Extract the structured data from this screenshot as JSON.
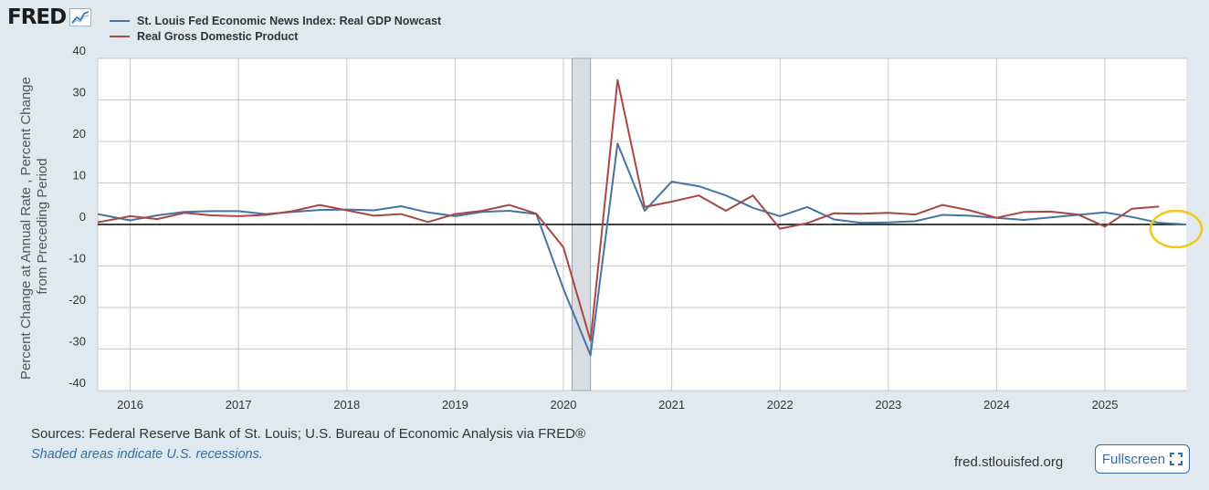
{
  "brand": {
    "logo_text": "FRED",
    "logo_icon": "line-chart-icon"
  },
  "colors": {
    "nowcast": "#4572a7",
    "gdp": "#aa4643",
    "highlight": "#f2c811",
    "accent": "#2e6eb0"
  },
  "footer": {
    "sources": "Sources: Federal Reserve Bank of St. Louis; U.S. Bureau of Economic Analysis via FRED®",
    "note": "Shaded areas indicate U.S. recessions.",
    "url": "fred.stlouisfed.org",
    "fullscreen_label": "Fullscreen",
    "fullscreen_icon": "expand-icon"
  },
  "chart_data": {
    "type": "line",
    "ylabel_line1": "Percent Change at Annual Rate , Percent Change",
    "ylabel_line2": "from Preceding Period",
    "ylim": [
      -40,
      40
    ],
    "yticks": [
      40,
      30,
      20,
      10,
      0,
      -10,
      -20,
      -30,
      -40
    ],
    "xlim": [
      2015.7,
      2025.75
    ],
    "xticks": [
      2016,
      2017,
      2018,
      2019,
      2020,
      2021,
      2022,
      2023,
      2024,
      2025
    ],
    "grid": true,
    "recession": [
      2020.08,
      2020.25
    ],
    "highlight": "circle at right end of the nowcast line",
    "series": [
      {
        "name": "St. Louis Fed Economic News Index: Real GDP Nowcast",
        "color": "#4572a7",
        "x": [
          2015.7,
          2016.0,
          2016.25,
          2016.5,
          2016.75,
          2017.0,
          2017.25,
          2017.5,
          2017.75,
          2018.0,
          2018.25,
          2018.5,
          2018.75,
          2019.0,
          2019.25,
          2019.5,
          2019.75,
          2020.0,
          2020.25,
          2020.5,
          2020.75,
          2021.0,
          2021.25,
          2021.5,
          2021.75,
          2022.0,
          2022.25,
          2022.5,
          2022.75,
          2023.0,
          2023.25,
          2023.5,
          2023.75,
          2024.0,
          2024.25,
          2024.5,
          2024.75,
          2025.0,
          2025.25,
          2025.5,
          2025.75
        ],
        "values": [
          2.5,
          1.0,
          2.2,
          3.0,
          3.2,
          3.2,
          2.5,
          3.0,
          3.5,
          3.6,
          3.4,
          4.4,
          2.9,
          2.0,
          3.0,
          3.3,
          2.5,
          -15.5,
          -31.5,
          19.5,
          3.3,
          10.3,
          9.2,
          7.0,
          4.0,
          2.0,
          4.2,
          1.2,
          0.4,
          0.5,
          0.8,
          2.3,
          2.1,
          1.6,
          1.1,
          1.7,
          2.3,
          2.9,
          1.8,
          0.4,
          0.0
        ]
      },
      {
        "name": "Real Gross Domestic Product",
        "color": "#aa4643",
        "x": [
          2015.7,
          2016.0,
          2016.25,
          2016.5,
          2016.75,
          2017.0,
          2017.25,
          2017.5,
          2017.75,
          2018.0,
          2018.25,
          2018.5,
          2018.75,
          2019.0,
          2019.25,
          2019.5,
          2019.75,
          2020.0,
          2020.25,
          2020.5,
          2020.75,
          2021.0,
          2021.25,
          2021.5,
          2021.75,
          2022.0,
          2022.25,
          2022.5,
          2022.75,
          2023.0,
          2023.25,
          2023.5,
          2023.75,
          2024.0,
          2024.25,
          2024.5,
          2024.75,
          2025.0,
          2025.25,
          2025.5
        ],
        "values": [
          0.5,
          2.0,
          1.3,
          2.8,
          2.2,
          2.0,
          2.3,
          3.2,
          4.7,
          3.4,
          2.1,
          2.5,
          0.6,
          2.5,
          3.3,
          4.7,
          2.6,
          -5.5,
          -28.0,
          34.8,
          4.2,
          5.5,
          7.0,
          3.3,
          7.0,
          -1.0,
          0.3,
          2.7,
          2.6,
          2.8,
          2.4,
          4.7,
          3.4,
          1.6,
          3.0,
          3.1,
          2.4,
          -0.5,
          3.8,
          4.3
        ]
      }
    ]
  }
}
